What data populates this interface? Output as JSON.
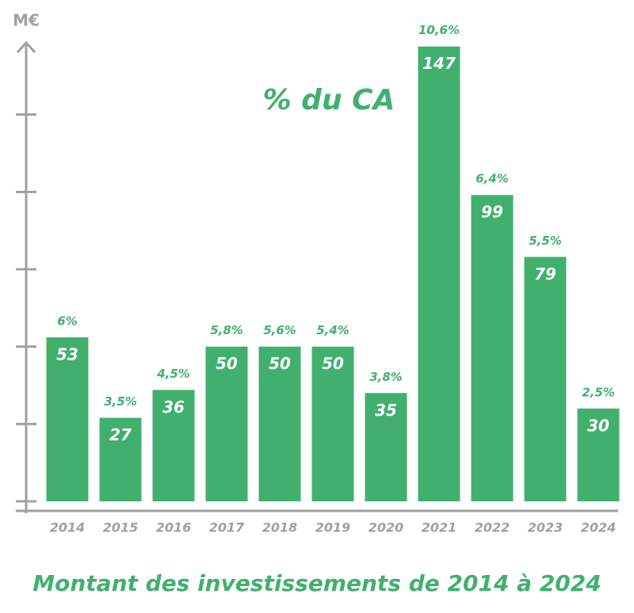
{
  "chart_data": {
    "type": "bar",
    "title": "Montant des investissements de 2014 à 2024",
    "y_label": "M€",
    "annotation": "% du CA",
    "categories": [
      "2014",
      "2015",
      "2016",
      "2017",
      "2018",
      "2019",
      "2020",
      "2021",
      "2022",
      "2023",
      "2024"
    ],
    "values": [
      53,
      27,
      36,
      50,
      50,
      50,
      35,
      147,
      99,
      79,
      30
    ],
    "color": "#41b06e",
    "share_of_revenue": {
      "values": [
        6,
        3.5,
        4.5,
        5.8,
        5.6,
        5.4,
        3.8,
        10.6,
        6.4,
        5.5,
        2.5
      ],
      "value_labels": [
        "6%",
        "3,5%",
        "4,5%",
        "5,8%",
        "5,6%",
        "5,4%",
        "3,8%",
        "10,6%",
        "6,4%",
        "5,5%",
        "2,5%"
      ]
    },
    "ylim": [
      0,
      150
    ],
    "yticks": [
      0,
      25,
      50,
      75,
      100,
      125
    ]
  }
}
